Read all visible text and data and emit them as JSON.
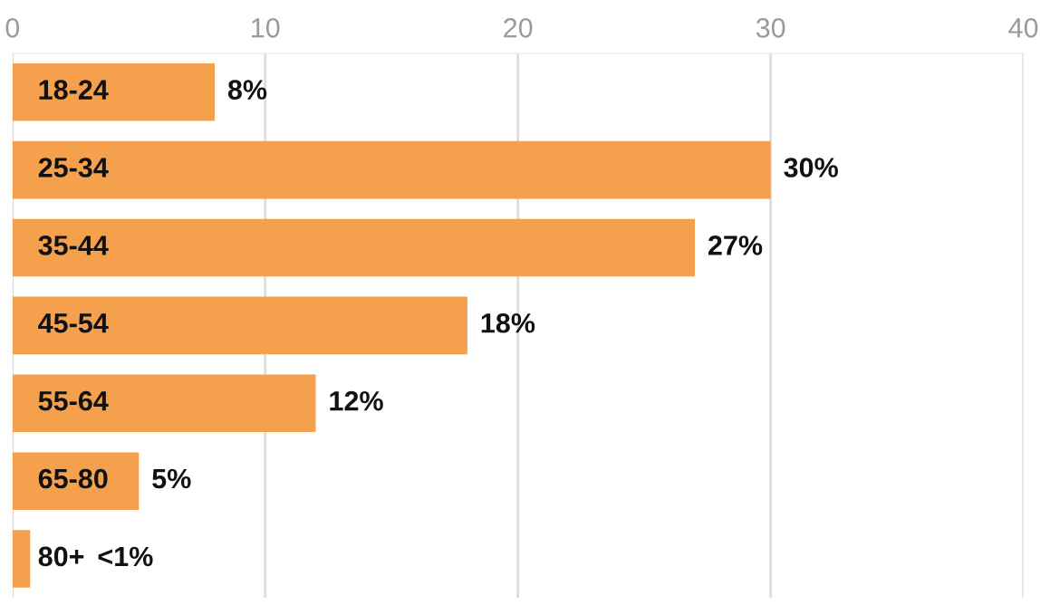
{
  "chart_data": {
    "type": "bar",
    "orientation": "horizontal",
    "categories": [
      "18-24",
      "25-34",
      "35-44",
      "45-54",
      "55-64",
      "65-80",
      "80+"
    ],
    "values": [
      8,
      30,
      27,
      18,
      12,
      5,
      0.7
    ],
    "value_labels": [
      "8%",
      "30%",
      "27%",
      "18%",
      "12%",
      "5%",
      "<1%"
    ],
    "color": "#f4a04c",
    "xlim": [
      0,
      40
    ],
    "xticks": [
      0,
      10,
      20,
      30,
      40
    ],
    "grid": "x"
  }
}
